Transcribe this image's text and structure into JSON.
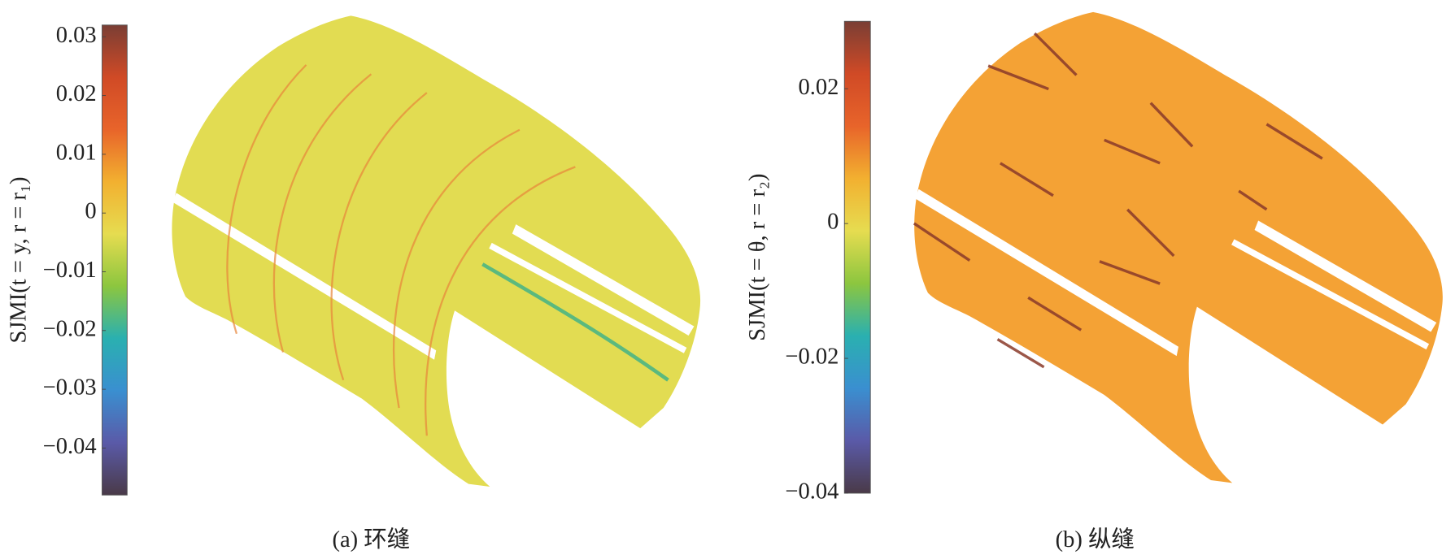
{
  "chart_data": [
    {
      "type": "colorbar",
      "ylabel": "SJMI(t = y, r = r₁)",
      "caption": "(a) 环缝",
      "ylim": [
        -0.048,
        0.032
      ],
      "yticks": [
        0.03,
        0.02,
        0.01,
        0,
        {
          "value": -0.01,
          "label": "−0.01"
        },
        {
          "value": -0.02,
          "label": "−0.02"
        },
        {
          "value": -0.03,
          "label": "−0.03"
        },
        {
          "value": -0.04,
          "label": "−0.04"
        }
      ],
      "colormap": [
        "#4a3a48",
        "#5a5aa8",
        "#3a8fd0",
        "#2ab0b0",
        "#8cc63f",
        "#e6dc50",
        "#f2b030",
        "#e8642a",
        "#d04a26",
        "#7a3e34"
      ],
      "fill_color": "#e2dc52"
    },
    {
      "type": "colorbar",
      "ylabel": "SJMI(t = θ, r = r₂)",
      "caption": "(b) 纵缝",
      "ylim": [
        -0.04,
        0.03
      ],
      "yticks": [
        0.02,
        0,
        {
          "value": -0.02,
          "label": "−0.02"
        },
        {
          "value": -0.04,
          "label": "−0.04"
        }
      ],
      "colormap": [
        "#4a3a48",
        "#5a5aa8",
        "#3a8fd0",
        "#2ab0b0",
        "#8cc63f",
        "#e6dc50",
        "#f2b030",
        "#e8642a",
        "#d04a26",
        "#7a3e34"
      ],
      "fill_color": "#f4a235"
    }
  ]
}
